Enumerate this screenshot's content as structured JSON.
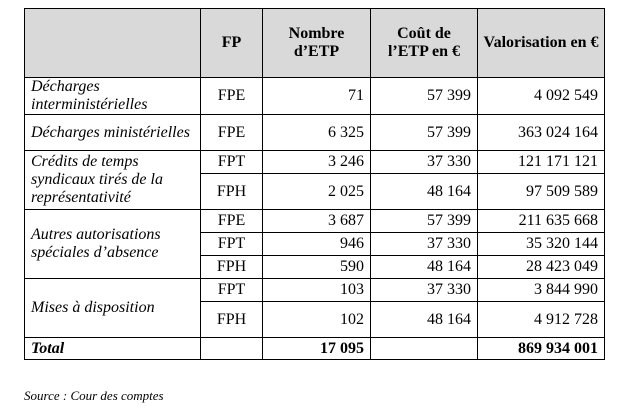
{
  "table": {
    "headers": [
      "",
      "FP",
      "Nombre d’ETP",
      "Coût de l’ETP en €",
      "Valorisation en €"
    ],
    "rows": [
      {
        "category": "Décharges interministérielles",
        "fp": "FPE",
        "etp": "71",
        "cout": "57 399",
        "valorisation": "4 092 549"
      },
      {
        "category": "Décharges ministérielles",
        "fp": "FPE",
        "etp": "6 325",
        "cout": "57 399",
        "valorisation": "363 024 164"
      },
      {
        "category": "Crédits de temps syndicaux tirés de la représentativité",
        "fp": "FPT",
        "etp": "3 246",
        "cout": "37 330",
        "valorisation": "121 171 121"
      },
      {
        "category": "",
        "fp": "FPH",
        "etp": "2 025",
        "cout": "48 164",
        "valorisation": "97 509 589"
      },
      {
        "category": "Autres autorisations spéciales d’absence",
        "fp": "FPE",
        "etp": "3 687",
        "cout": "57 399",
        "valorisation": "211 635 668"
      },
      {
        "category": "",
        "fp": "FPT",
        "etp": "946",
        "cout": "37 330",
        "valorisation": "35 320 144"
      },
      {
        "category": "",
        "fp": "FPH",
        "etp": "590",
        "cout": "48 164",
        "valorisation": "28 423 049"
      },
      {
        "category": "Mises à disposition",
        "fp": "FPT",
        "etp": "103",
        "cout": "37 330",
        "valorisation": "3 844 990"
      },
      {
        "category": "",
        "fp": "FPH",
        "etp": "102",
        "cout": "48 164",
        "valorisation": "4 912 728"
      }
    ],
    "total": {
      "label": "Total",
      "etp": "17 095",
      "valorisation": "869 934 001"
    }
  },
  "source": "Source : Cour des comptes"
}
